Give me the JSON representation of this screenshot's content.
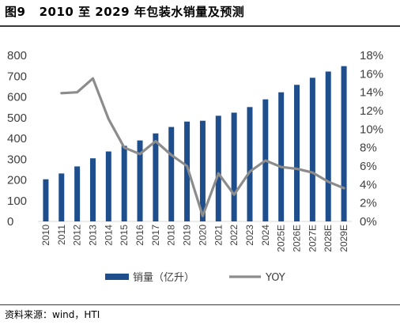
{
  "header": {
    "figure_label": "图9",
    "title": "2010 至 2029 年包装水销量及预测"
  },
  "footer": {
    "source": "资料来源：wind，HTI"
  },
  "colors": {
    "bar": "#1f4e8c",
    "line": "#8c8c8c",
    "axis": "#d9d9d9",
    "text": "#3f3f3f"
  },
  "chart_data": {
    "type": "bar",
    "categories": [
      "2010",
      "2011",
      "2012",
      "2013",
      "2014",
      "2015",
      "2016",
      "2017",
      "2018",
      "2019",
      "2020",
      "2021",
      "2022",
      "2023",
      "2024",
      "2025E",
      "2026E",
      "2027E",
      "2028E",
      "2029E"
    ],
    "series": [
      {
        "name": "销量（亿升）",
        "type": "bar",
        "axis": "left",
        "values": [
          203,
          231,
          265,
          304,
          337,
          364,
          390,
          424,
          455,
          481,
          485,
          509,
          524,
          551,
          588,
          622,
          658,
          692,
          722,
          748
        ]
      },
      {
        "name": "YOY",
        "type": "line",
        "axis": "right",
        "values": [
          null,
          0.139,
          0.14,
          0.155,
          0.111,
          0.08,
          0.073,
          0.087,
          0.072,
          0.06,
          0.006,
          0.052,
          0.029,
          0.054,
          0.066,
          0.059,
          0.057,
          0.053,
          0.043,
          0.036
        ]
      }
    ],
    "yleft": {
      "ticks": [
        "0",
        "100",
        "200",
        "300",
        "400",
        "500",
        "600",
        "700",
        "800"
      ],
      "ylim": [
        0,
        800
      ]
    },
    "yright": {
      "ticks": [
        "0%",
        "2%",
        "4%",
        "6%",
        "8%",
        "10%",
        "12%",
        "14%",
        "16%",
        "18%"
      ],
      "ylim": [
        0,
        0.18
      ]
    },
    "legend_position": "bottom-center",
    "grid": false
  }
}
